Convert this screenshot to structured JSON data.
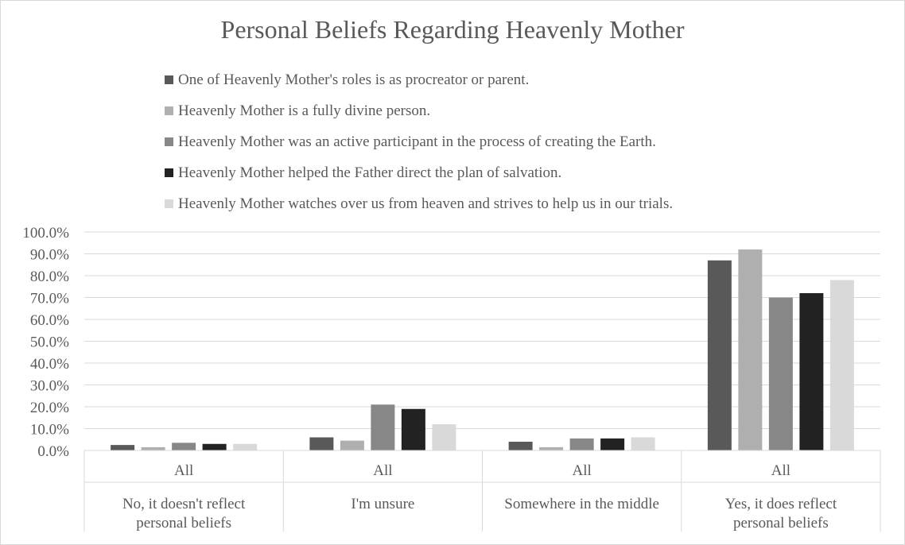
{
  "chart_data": {
    "type": "bar",
    "title": "Personal Beliefs Regarding Heavenly Mother",
    "legend_position": "top",
    "grid": true,
    "ylim": [
      0,
      100
    ],
    "y_ticks": [
      "0.0%",
      "10.0%",
      "20.0%",
      "30.0%",
      "40.0%",
      "50.0%",
      "60.0%",
      "70.0%",
      "80.0%",
      "90.0%",
      "100.0%"
    ],
    "categories": [
      {
        "sub": "All",
        "group": "No, it doesn't reflect personal beliefs"
      },
      {
        "sub": "All",
        "group": "I'm unsure"
      },
      {
        "sub": "All",
        "group": "Somewhere in the middle"
      },
      {
        "sub": "All",
        "group": "Yes, it does reflect personal beliefs"
      }
    ],
    "series": [
      {
        "name": "One of Heavenly Mother's roles is as procreator or parent.",
        "color": "#595959",
        "values": [
          2.5,
          6.0,
          4.0,
          87.0
        ]
      },
      {
        "name": "Heavenly Mother is a fully divine person.",
        "color": "#afafaf",
        "values": [
          1.5,
          4.5,
          1.5,
          92.0
        ]
      },
      {
        "name": "Heavenly Mother was an active participant in the process of creating the Earth.",
        "color": "#878787",
        "values": [
          3.5,
          21.0,
          5.5,
          70.0
        ]
      },
      {
        "name": "Heavenly Mother helped the Father direct the plan of salvation.",
        "color": "#222222",
        "values": [
          3.0,
          19.0,
          5.5,
          72.0
        ]
      },
      {
        "name": "Heavenly Mother watches over us from heaven and strives to help us in our trials.",
        "color": "#d9d9d9",
        "values": [
          3.0,
          12.0,
          6.0,
          78.0
        ]
      }
    ]
  }
}
